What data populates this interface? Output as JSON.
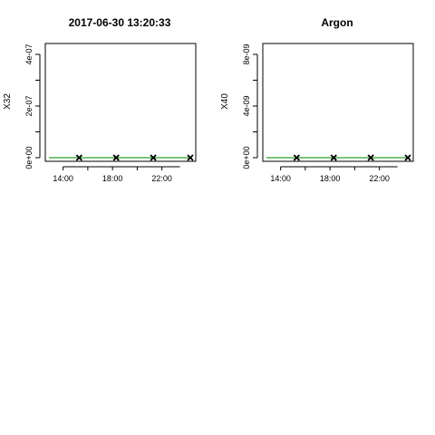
{
  "chart_data": [
    {
      "type": "line",
      "title": "2017-06-30 13:20:33",
      "xlabel": "",
      "ylabel": "X32",
      "x_ticks": [
        "14:00",
        "18:00",
        "22:00"
      ],
      "y_ticks": [
        "0e+00",
        "2e-07",
        "4e-07"
      ],
      "ylim": [
        0,
        4.5e-07
      ],
      "xlim_hours": [
        13.0,
        24.3
      ],
      "x_hours": [
        15.3,
        18.3,
        21.3,
        24.3
      ],
      "line_values": [
        0,
        0,
        0,
        0
      ],
      "point_values": [
        0,
        0,
        0,
        0
      ],
      "line_color": "#2ca02c",
      "point_marker": "x",
      "grid": false
    },
    {
      "type": "line",
      "title": "Argon",
      "xlabel": "",
      "ylabel": "X40",
      "x_ticks": [
        "14:00",
        "18:00",
        "22:00"
      ],
      "y_ticks": [
        "0e+00",
        "4e-09",
        "8e-09"
      ],
      "ylim": [
        0,
        1.1e-08
      ],
      "xlim_hours": [
        13.0,
        24.3
      ],
      "x_hours": [
        15.3,
        18.3,
        21.3,
        24.3
      ],
      "line_values": [
        0,
        0,
        0,
        0
      ],
      "point_values": [
        0,
        0,
        0,
        0
      ],
      "line_color": "#2ca02c",
      "point_marker": "x",
      "grid": false
    }
  ]
}
